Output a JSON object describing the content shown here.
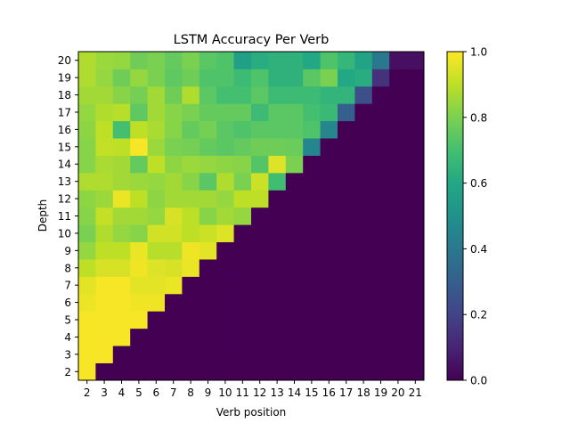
{
  "chart_data": {
    "type": "heatmap",
    "title": "LSTM Accuracy Per Verb",
    "xlabel": "Verb position",
    "ylabel": "Depth",
    "x_categories": [
      "2",
      "3",
      "4",
      "5",
      "6",
      "7",
      "8",
      "9",
      "10",
      "11",
      "12",
      "13",
      "14",
      "15",
      "16",
      "17",
      "18",
      "19",
      "20",
      "21"
    ],
    "y_categories": [
      "2",
      "3",
      "4",
      "5",
      "6",
      "7",
      "8",
      "9",
      "10",
      "11",
      "12",
      "13",
      "14",
      "15",
      "16",
      "17",
      "18",
      "19",
      "20"
    ],
    "colormap": "viridis",
    "vmin": 0.0,
    "vmax": 1.0,
    "colorbar_ticks": [
      "0.0",
      "0.2",
      "0.4",
      "0.6",
      "0.8",
      "1.0"
    ],
    "colorbar_values": [
      0.0,
      0.2,
      0.4,
      0.6,
      0.8,
      1.0
    ],
    "values": [
      [
        0.99,
        0.0,
        0.0,
        0.0,
        0.0,
        0.0,
        0.0,
        0.0,
        0.0,
        0.0,
        0.0,
        0.0,
        0.0,
        0.0,
        0.0,
        0.0,
        0.0,
        0.0,
        0.0,
        0.0
      ],
      [
        0.99,
        0.99,
        0.0,
        0.0,
        0.0,
        0.0,
        0.0,
        0.0,
        0.0,
        0.0,
        0.0,
        0.0,
        0.0,
        0.0,
        0.0,
        0.0,
        0.0,
        0.0,
        0.0,
        0.0
      ],
      [
        0.99,
        0.99,
        0.99,
        0.0,
        0.0,
        0.0,
        0.0,
        0.0,
        0.0,
        0.0,
        0.0,
        0.0,
        0.0,
        0.0,
        0.0,
        0.0,
        0.0,
        0.0,
        0.0,
        0.0
      ],
      [
        0.99,
        0.99,
        0.99,
        0.99,
        0.0,
        0.0,
        0.0,
        0.0,
        0.0,
        0.0,
        0.0,
        0.0,
        0.0,
        0.0,
        0.0,
        0.0,
        0.0,
        0.0,
        0.0,
        0.0
      ],
      [
        0.97,
        0.99,
        0.99,
        0.98,
        0.98,
        0.0,
        0.0,
        0.0,
        0.0,
        0.0,
        0.0,
        0.0,
        0.0,
        0.0,
        0.0,
        0.0,
        0.0,
        0.0,
        0.0,
        0.0
      ],
      [
        0.96,
        0.99,
        0.99,
        0.96,
        0.96,
        0.97,
        0.0,
        0.0,
        0.0,
        0.0,
        0.0,
        0.0,
        0.0,
        0.0,
        0.0,
        0.0,
        0.0,
        0.0,
        0.0,
        0.0
      ],
      [
        0.9,
        0.94,
        0.94,
        0.98,
        0.95,
        0.94,
        0.97,
        0.0,
        0.0,
        0.0,
        0.0,
        0.0,
        0.0,
        0.0,
        0.0,
        0.0,
        0.0,
        0.0,
        0.0,
        0.0
      ],
      [
        0.84,
        0.9,
        0.9,
        0.97,
        0.89,
        0.89,
        0.98,
        0.96,
        0.0,
        0.0,
        0.0,
        0.0,
        0.0,
        0.0,
        0.0,
        0.0,
        0.0,
        0.0,
        0.0,
        0.0
      ],
      [
        0.8,
        0.88,
        0.84,
        0.82,
        0.93,
        0.93,
        0.9,
        0.92,
        0.95,
        0.0,
        0.0,
        0.0,
        0.0,
        0.0,
        0.0,
        0.0,
        0.0,
        0.0,
        0.0,
        0.0
      ],
      [
        0.82,
        0.91,
        0.86,
        0.86,
        0.84,
        0.94,
        0.9,
        0.82,
        0.86,
        0.84,
        0.0,
        0.0,
        0.0,
        0.0,
        0.0,
        0.0,
        0.0,
        0.0,
        0.0,
        0.0
      ],
      [
        0.83,
        0.85,
        0.97,
        0.9,
        0.83,
        0.86,
        0.86,
        0.86,
        0.84,
        0.9,
        0.9,
        0.0,
        0.0,
        0.0,
        0.0,
        0.0,
        0.0,
        0.0,
        0.0,
        0.0
      ],
      [
        0.88,
        0.88,
        0.86,
        0.85,
        0.84,
        0.86,
        0.82,
        0.74,
        0.88,
        0.8,
        0.92,
        0.69,
        0.0,
        0.0,
        0.0,
        0.0,
        0.0,
        0.0,
        0.0,
        0.0
      ],
      [
        0.82,
        0.87,
        0.86,
        0.76,
        0.9,
        0.83,
        0.85,
        0.84,
        0.83,
        0.82,
        0.73,
        0.95,
        0.8,
        0.0,
        0.0,
        0.0,
        0.0,
        0.0,
        0.0,
        0.0
      ],
      [
        0.82,
        0.91,
        0.9,
        0.99,
        0.85,
        0.8,
        0.79,
        0.76,
        0.74,
        0.76,
        0.78,
        0.78,
        0.77,
        0.46,
        0.0,
        0.0,
        0.0,
        0.0,
        0.0,
        0.0
      ],
      [
        0.83,
        0.9,
        0.7,
        0.9,
        0.87,
        0.82,
        0.76,
        0.79,
        0.74,
        0.72,
        0.74,
        0.74,
        0.74,
        0.72,
        0.45,
        0.0,
        0.0,
        0.0,
        0.0,
        0.0
      ],
      [
        0.84,
        0.88,
        0.89,
        0.75,
        0.86,
        0.82,
        0.8,
        0.76,
        0.76,
        0.76,
        0.68,
        0.74,
        0.74,
        0.7,
        0.67,
        0.3,
        0.0,
        0.0,
        0.0,
        0.0
      ],
      [
        0.86,
        0.86,
        0.82,
        0.79,
        0.86,
        0.78,
        0.88,
        0.74,
        0.7,
        0.7,
        0.74,
        0.68,
        0.68,
        0.68,
        0.65,
        0.65,
        0.24,
        0.0,
        0.0,
        0.0
      ],
      [
        0.88,
        0.84,
        0.78,
        0.84,
        0.8,
        0.75,
        0.78,
        0.72,
        0.72,
        0.68,
        0.72,
        0.64,
        0.64,
        0.74,
        0.8,
        0.6,
        0.62,
        0.14,
        0.0,
        0.0
      ],
      [
        0.88,
        0.85,
        0.84,
        0.78,
        0.8,
        0.76,
        0.8,
        0.74,
        0.72,
        0.56,
        0.62,
        0.64,
        0.64,
        0.6,
        0.72,
        0.66,
        0.58,
        0.4,
        0.04,
        0.04
      ]
    ]
  }
}
